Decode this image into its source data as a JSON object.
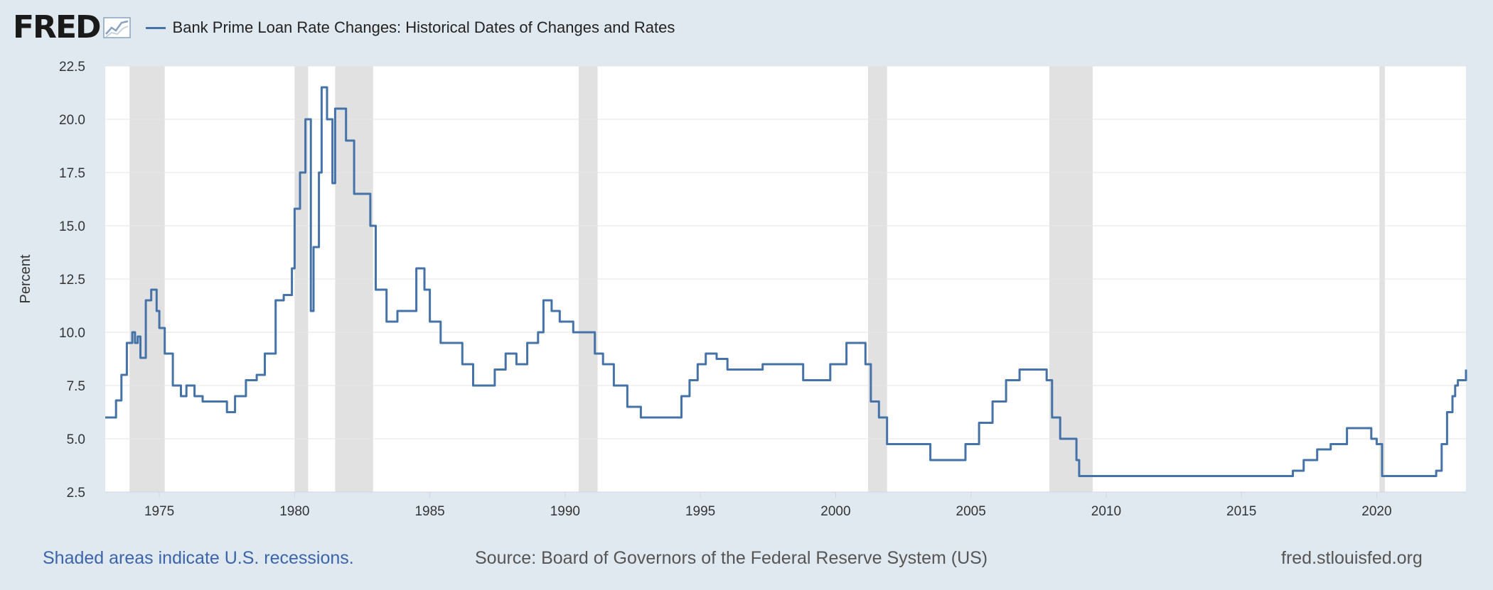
{
  "header": {
    "logo_text": "FRED",
    "series_label": "Bank Prime Loan Rate Changes: Historical Dates of Changes and Rates"
  },
  "footer": {
    "recession_note": "Shaded areas indicate U.S. recessions.",
    "source": "Source: Board of Governors of the Federal Reserve System (US)",
    "site": "fred.stlouisfed.org"
  },
  "colors": {
    "line": "#4572a7",
    "recession": "#e1e1e1",
    "background": "#e1e9f0",
    "plot": "#ffffff"
  },
  "chart_data": {
    "type": "line",
    "title": "",
    "ylabel": "Percent",
    "xlabel": "",
    "xlim": [
      1973.0,
      2023.3
    ],
    "ylim": [
      2.5,
      22.5
    ],
    "yticks": [
      "2.5",
      "5.0",
      "7.5",
      "10.0",
      "12.5",
      "15.0",
      "17.5",
      "20.0",
      "22.5"
    ],
    "xticks": [
      "1975",
      "1980",
      "1985",
      "1990",
      "1995",
      "2000",
      "2005",
      "2010",
      "2015",
      "2020"
    ],
    "recessions": [
      [
        1973.9,
        1975.2
      ],
      [
        1980.0,
        1980.5
      ],
      [
        1981.5,
        1982.9
      ],
      [
        1990.5,
        1991.2
      ],
      [
        2001.2,
        2001.9
      ],
      [
        2007.9,
        2009.5
      ],
      [
        2020.1,
        2020.3
      ]
    ],
    "series": [
      {
        "name": "Bank Prime Loan Rate Changes: Historical Dates of Changes and Rates",
        "x": [
          1973.0,
          1973.4,
          1973.6,
          1973.8,
          1974.0,
          1974.1,
          1974.2,
          1974.3,
          1974.5,
          1974.7,
          1974.9,
          1975.0,
          1975.2,
          1975.5,
          1975.8,
          1976.0,
          1976.3,
          1976.6,
          1977.0,
          1977.5,
          1977.8,
          1978.2,
          1978.6,
          1978.9,
          1979.3,
          1979.6,
          1979.9,
          1980.0,
          1980.2,
          1980.4,
          1980.6,
          1980.7,
          1980.9,
          1981.0,
          1981.2,
          1981.4,
          1981.5,
          1981.7,
          1981.9,
          1982.2,
          1982.5,
          1982.8,
          1983.0,
          1983.4,
          1983.8,
          1984.2,
          1984.5,
          1984.8,
          1985.0,
          1985.4,
          1985.8,
          1986.2,
          1986.6,
          1987.0,
          1987.4,
          1987.8,
          1988.2,
          1988.6,
          1989.0,
          1989.2,
          1989.5,
          1989.8,
          1990.3,
          1990.8,
          1991.1,
          1991.4,
          1991.8,
          1992.3,
          1992.8,
          1993.5,
          1994.0,
          1994.3,
          1994.6,
          1994.9,
          1995.2,
          1995.6,
          1996.0,
          1996.5,
          1997.3,
          1998.0,
          1998.8,
          1999.3,
          1999.8,
          2000.4,
          2000.9,
          2001.1,
          2001.3,
          2001.6,
          2001.9,
          2002.5,
          2003.5,
          2004.4,
          2004.8,
          2005.3,
          2005.8,
          2006.3,
          2006.8,
          2007.6,
          2007.8,
          2008.0,
          2008.3,
          2008.6,
          2008.9,
          2009.0,
          2010.0,
          2015.9,
          2016.9,
          2017.3,
          2017.8,
          2018.3,
          2018.9,
          2019.5,
          2019.8,
          2020.0,
          2020.2,
          2021.0,
          2022.0,
          2022.2,
          2022.4,
          2022.6,
          2022.8,
          2022.9,
          2023.0,
          2023.3
        ],
        "y": [
          6.0,
          6.8,
          8.0,
          9.5,
          10.0,
          9.5,
          9.8,
          8.8,
          11.5,
          12.0,
          11.0,
          10.2,
          9.0,
          7.5,
          7.0,
          7.5,
          7.0,
          6.75,
          6.75,
          6.25,
          7.0,
          7.75,
          8.0,
          9.0,
          11.5,
          11.75,
          13.0,
          15.8,
          17.5,
          20.0,
          11.0,
          14.0,
          17.5,
          21.5,
          20.0,
          17.0,
          20.5,
          20.5,
          19.0,
          16.5,
          16.5,
          15.0,
          12.0,
          10.5,
          11.0,
          11.0,
          13.0,
          12.0,
          10.5,
          9.5,
          9.5,
          8.5,
          7.5,
          7.5,
          8.25,
          9.0,
          8.5,
          9.5,
          10.0,
          11.5,
          11.0,
          10.5,
          10.0,
          10.0,
          9.0,
          8.5,
          7.5,
          6.5,
          6.0,
          6.0,
          6.0,
          7.0,
          7.75,
          8.5,
          9.0,
          8.75,
          8.25,
          8.25,
          8.5,
          8.5,
          7.75,
          7.75,
          8.5,
          9.5,
          9.5,
          8.5,
          6.75,
          6.0,
          4.75,
          4.75,
          4.0,
          4.0,
          4.75,
          5.75,
          6.75,
          7.75,
          8.25,
          8.25,
          7.75,
          6.0,
          5.0,
          5.0,
          4.0,
          3.25,
          3.25,
          3.25,
          3.5,
          4.0,
          4.5,
          4.75,
          5.5,
          5.5,
          5.0,
          4.75,
          3.25,
          3.25,
          3.25,
          3.5,
          4.75,
          6.25,
          7.0,
          7.5,
          7.75,
          8.25
        ]
      }
    ]
  }
}
